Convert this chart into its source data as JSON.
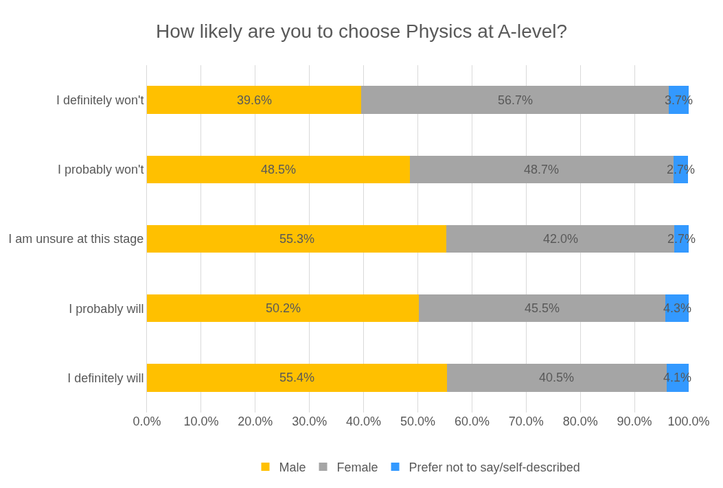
{
  "chart_data": {
    "type": "bar",
    "orientation": "horizontal",
    "stacked": true,
    "title": "How likely are you to choose Physics at A-level?",
    "categories": [
      "I definitely won't",
      "I probably won't",
      "I am unsure at this stage",
      "I probably will",
      "I definitely will"
    ],
    "series": [
      {
        "name": "Male",
        "color": "#ffc000",
        "values": [
          39.6,
          48.5,
          55.3,
          50.2,
          55.4
        ],
        "value_labels": [
          "39.6%",
          "48.5%",
          "55.3%",
          "50.2%",
          "55.4%"
        ]
      },
      {
        "name": "Female",
        "color": "#a5a5a5",
        "values": [
          56.7,
          48.7,
          42.0,
          45.5,
          40.5
        ],
        "value_labels": [
          "56.7%",
          "48.7%",
          "42.0%",
          "45.5%",
          "40.5%"
        ]
      },
      {
        "name": "Prefer not to say/self-described",
        "color": "#3399ff",
        "values": [
          3.7,
          2.7,
          2.7,
          4.3,
          4.1
        ],
        "value_labels": [
          "3.7%",
          "2.7%",
          "2.7%",
          "4.3%",
          "4.1%"
        ]
      }
    ],
    "xlim": [
      0,
      100
    ],
    "xticks": [
      {
        "value": 0,
        "label": "0.0%"
      },
      {
        "value": 10,
        "label": "10.0%"
      },
      {
        "value": 20,
        "label": "20.0%"
      },
      {
        "value": 30,
        "label": "30.0%"
      },
      {
        "value": 40,
        "label": "40.0%"
      },
      {
        "value": 50,
        "label": "50.0%"
      },
      {
        "value": 60,
        "label": "60.0%"
      },
      {
        "value": 70,
        "label": "70.0%"
      },
      {
        "value": 80,
        "label": "80.0%"
      },
      {
        "value": 90,
        "label": "90.0%"
      },
      {
        "value": 100,
        "label": "100.0%"
      }
    ],
    "grid": "x",
    "legend": "bottom"
  }
}
